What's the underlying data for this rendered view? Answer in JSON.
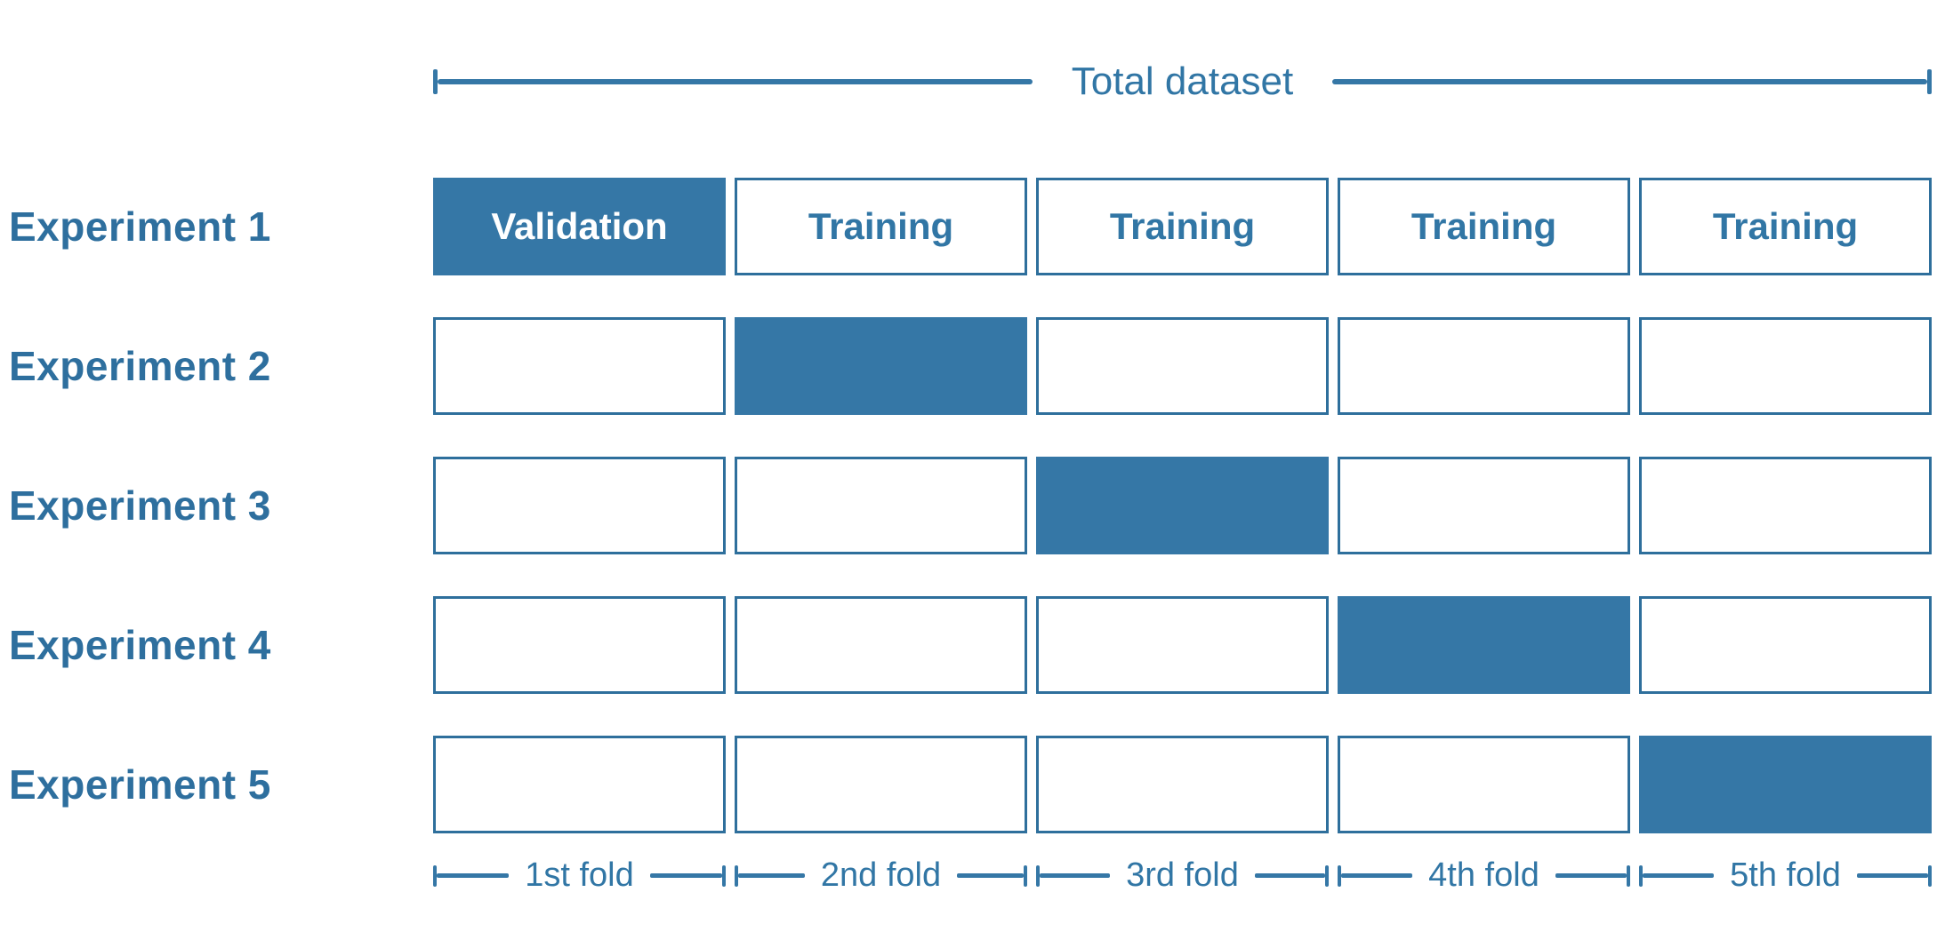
{
  "title": {
    "label": "Total dataset"
  },
  "colors": {
    "accent_fill": "#3577A6",
    "border_blue": "#2E6F9C",
    "text_blue": "#3176A5",
    "label_blue": "#2E6F9E",
    "validation_text": "#FFFFFF",
    "background": "#FFFFFF"
  },
  "experiments": [
    {
      "label": "Experiment 1",
      "cells": [
        {
          "text": "Validation",
          "filled": true
        },
        {
          "text": "Training",
          "filled": false
        },
        {
          "text": "Training",
          "filled": false
        },
        {
          "text": "Training",
          "filled": false
        },
        {
          "text": "Training",
          "filled": false
        }
      ]
    },
    {
      "label": "Experiment 2",
      "cells": [
        {
          "text": "",
          "filled": false
        },
        {
          "text": "",
          "filled": true
        },
        {
          "text": "",
          "filled": false
        },
        {
          "text": "",
          "filled": false
        },
        {
          "text": "",
          "filled": false
        }
      ]
    },
    {
      "label": "Experiment 3",
      "cells": [
        {
          "text": "",
          "filled": false
        },
        {
          "text": "",
          "filled": false
        },
        {
          "text": "",
          "filled": true
        },
        {
          "text": "",
          "filled": false
        },
        {
          "text": "",
          "filled": false
        }
      ]
    },
    {
      "label": "Experiment 4",
      "cells": [
        {
          "text": "",
          "filled": false
        },
        {
          "text": "",
          "filled": false
        },
        {
          "text": "",
          "filled": false
        },
        {
          "text": "",
          "filled": true
        },
        {
          "text": "",
          "filled": false
        }
      ]
    },
    {
      "label": "Experiment 5",
      "cells": [
        {
          "text": "",
          "filled": false
        },
        {
          "text": "",
          "filled": false
        },
        {
          "text": "",
          "filled": false
        },
        {
          "text": "",
          "filled": false
        },
        {
          "text": "",
          "filled": true
        }
      ]
    }
  ],
  "folds": [
    "1st fold",
    "2nd fold",
    "3rd fold",
    "4th fold",
    "5th fold"
  ]
}
